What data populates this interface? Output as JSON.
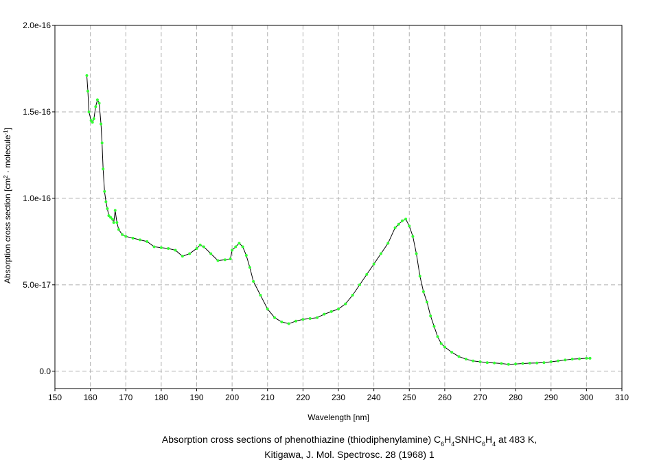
{
  "chart_data": {
    "type": "line",
    "title": [
      [
        {
          "text": "Absorption cross sections of phenothiazine (thiodiphenylamine) C"
        },
        {
          "text": "6",
          "sub": true
        },
        {
          "text": "H"
        },
        {
          "text": "4",
          "sub": true
        },
        {
          "text": "SNHC"
        },
        {
          "text": "6",
          "sub": true
        },
        {
          "text": "H"
        },
        {
          "text": "4",
          "sub": true
        },
        {
          "text": " at 483 K,"
        }
      ],
      [
        {
          "text": "Kitigawa, J. Mol. Spectrosc. 28 (1968) 1"
        }
      ]
    ],
    "xlabel": [
      {
        "text": "Wavelength [nm]"
      }
    ],
    "ylabel": [
      {
        "text": "Absorption cross section [cm"
      },
      {
        "text": "2",
        "sup": true
      },
      {
        "text": " · molecule"
      },
      {
        "text": "-1",
        "sup": true
      },
      {
        "text": "]"
      }
    ],
    "xlim": [
      150,
      310
    ],
    "xticks": [
      150,
      160,
      170,
      180,
      190,
      200,
      210,
      220,
      230,
      240,
      250,
      260,
      270,
      280,
      290,
      300,
      310
    ],
    "ylim": [
      -1e-17,
      2e-16
    ],
    "yticks": [
      {
        "value": 0,
        "label": "0.0"
      },
      {
        "value": 5e-17,
        "label": "5.0e-17"
      },
      {
        "value": 1e-16,
        "label": "1.0e-16"
      },
      {
        "value": 1.5e-16,
        "label": "1.5e-16"
      },
      {
        "value": 2e-16,
        "label": "2.0e-16"
      }
    ],
    "grid": true,
    "series": [
      {
        "color": "#000000",
        "marker_color": "#33ff33",
        "x": [
          159,
          159.3,
          159.6,
          160.2,
          160.6,
          161,
          161.5,
          162,
          162.5,
          163,
          163.3,
          163.6,
          164,
          164.4,
          164.8,
          165.2,
          165.7,
          166.2,
          166.6,
          167,
          167.5,
          168,
          169,
          170,
          172,
          174,
          176,
          178,
          180,
          182,
          184,
          186,
          188,
          190,
          191,
          192,
          194,
          196,
          198,
          199.5,
          200,
          201,
          202,
          203,
          204,
          205,
          206,
          208,
          210,
          212,
          214,
          216,
          218,
          220,
          222,
          224,
          226,
          228,
          230,
          232,
          234,
          236,
          238,
          240,
          242,
          244,
          246,
          247,
          248,
          249,
          250,
          251,
          252,
          253,
          254,
          255,
          256,
          257,
          258,
          259,
          260,
          262,
          264,
          266,
          268,
          270,
          272,
          274,
          276,
          278,
          280,
          282,
          284,
          286,
          288,
          290,
          292,
          294,
          296,
          298,
          300,
          301
        ],
        "values": [
          1.71e-16,
          1.62e-16,
          1.5e-16,
          1.45e-16,
          1.44e-16,
          1.46e-16,
          1.53e-16,
          1.57e-16,
          1.55e-16,
          1.43e-16,
          1.32e-16,
          1.17e-16,
          1.04e-16,
          9.8e-17,
          9.4e-17,
          9e-17,
          8.9e-17,
          8.8e-17,
          8.6e-17,
          9.3e-17,
          8.6e-17,
          8.2e-17,
          7.9e-17,
          7.8e-17,
          7.7e-17,
          7.6e-17,
          7.5e-17,
          7.2e-17,
          7.15e-17,
          7.1e-17,
          7e-17,
          6.65e-17,
          6.8e-17,
          7.1e-17,
          7.3e-17,
          7.2e-17,
          6.8e-17,
          6.4e-17,
          6.45e-17,
          6.5e-17,
          7e-17,
          7.2e-17,
          7.4e-17,
          7.2e-17,
          6.7e-17,
          6e-17,
          5.2e-17,
          4.4e-17,
          3.6e-17,
          3.1e-17,
          2.85e-17,
          2.75e-17,
          2.9e-17,
          3e-17,
          3.05e-17,
          3.1e-17,
          3.3e-17,
          3.45e-17,
          3.6e-17,
          3.9e-17,
          4.4e-17,
          5e-17,
          5.6e-17,
          6.2e-17,
          6.8e-17,
          7.4e-17,
          8.3e-17,
          8.5e-17,
          8.7e-17,
          8.8e-17,
          8.4e-17,
          7.8e-17,
          6.8e-17,
          5.5e-17,
          4.6e-17,
          4e-17,
          3.2e-17,
          2.6e-17,
          2e-17,
          1.6e-17,
          1.4e-17,
          1.1e-17,
          8.5e-18,
          7e-18,
          6e-18,
          5.5e-18,
          5e-18,
          4.8e-18,
          4.5e-18,
          4e-18,
          4.2e-18,
          4.5e-18,
          4.7e-18,
          4.8e-18,
          5e-18,
          5.5e-18,
          6e-18,
          6.5e-18,
          7e-18,
          7.2e-18,
          7.5e-18,
          7.5e-18
        ]
      }
    ]
  }
}
